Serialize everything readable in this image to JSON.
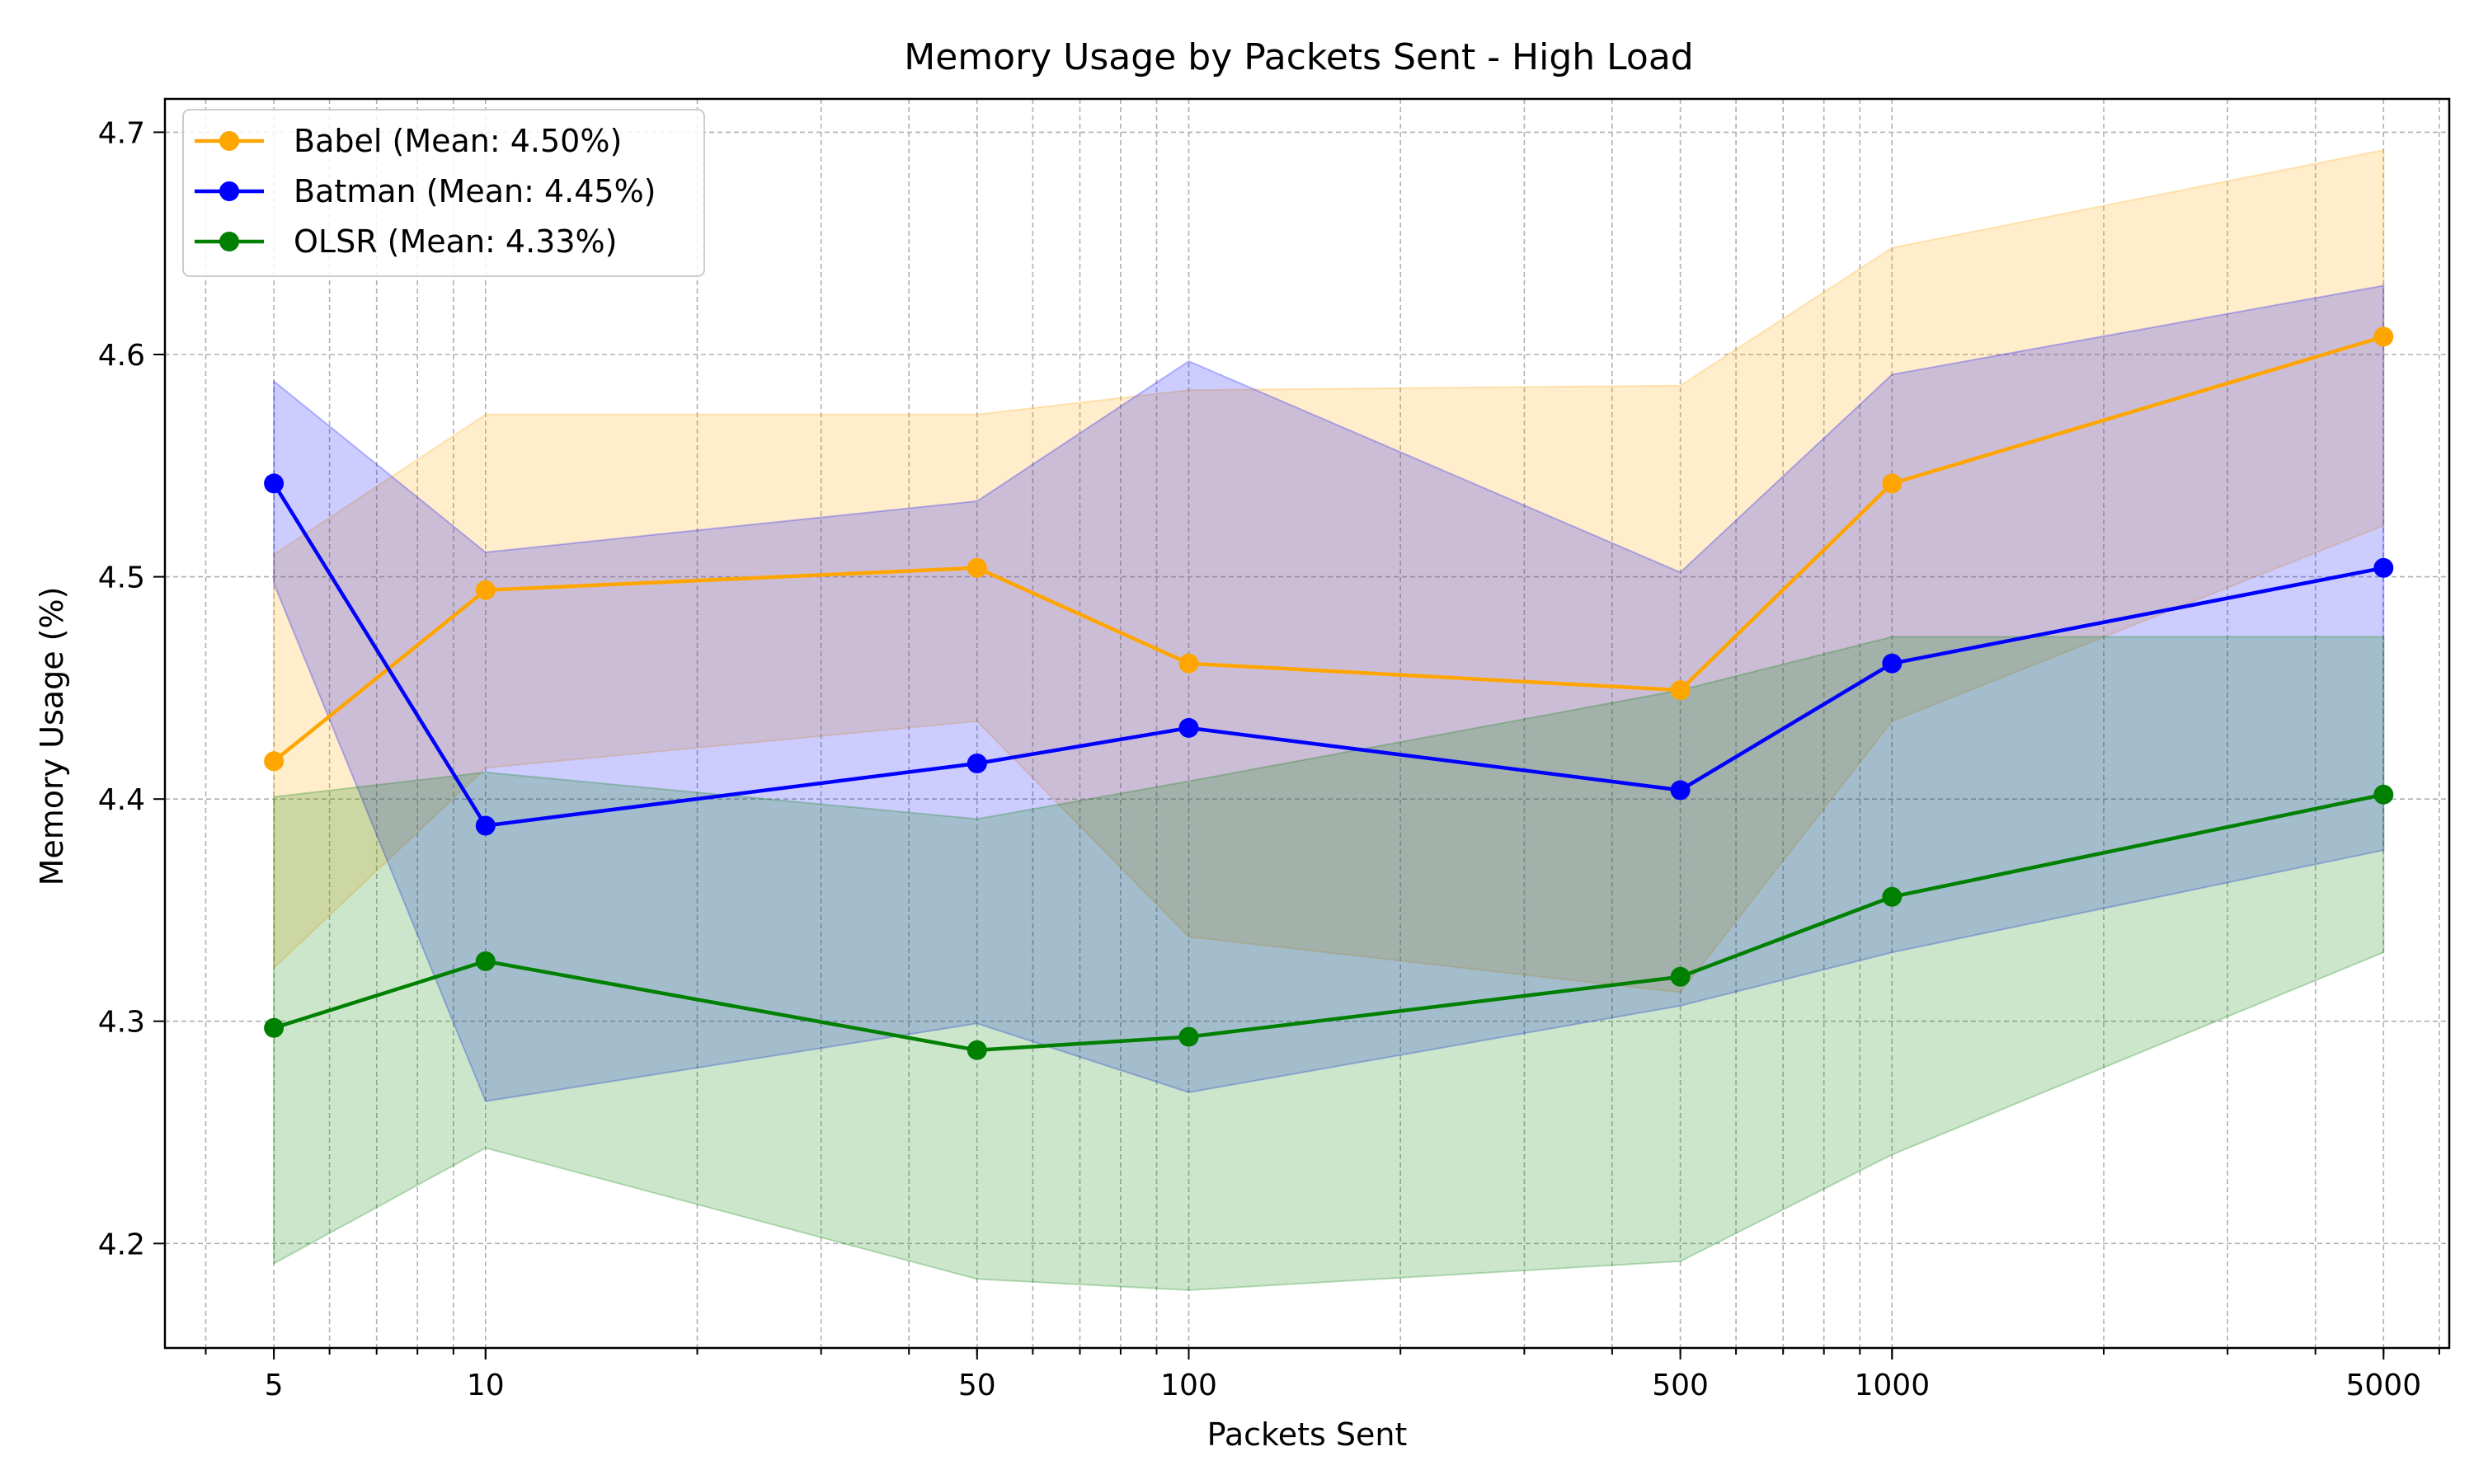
{
  "chart_data": {
    "type": "line",
    "title": "Memory Usage by Packets Sent - High Load",
    "xlabel": "Packets Sent",
    "ylabel": "Memory Usage (%)",
    "x_scale": "log",
    "xlim": [
      3.5,
      6200
    ],
    "ylim": [
      4.153,
      4.715
    ],
    "x": [
      5,
      10,
      50,
      100,
      500,
      1000,
      5000
    ],
    "x_tick_labels": [
      "5",
      "10",
      "50",
      "100",
      "500",
      "1000",
      "5000"
    ],
    "y_ticks": [
      4.2,
      4.3,
      4.4,
      4.5,
      4.6,
      4.7
    ],
    "y_tick_labels": [
      "4.2",
      "4.3",
      "4.4",
      "4.5",
      "4.6",
      "4.7"
    ],
    "grid": true,
    "legend_position": "top-left",
    "series": [
      {
        "name": "Babel (Mean: 4.50%)",
        "color": "#ffa500",
        "values": [
          4.417,
          4.494,
          4.504,
          4.461,
          4.449,
          4.542,
          4.608
        ],
        "band_upper": [
          4.51,
          4.573,
          4.573,
          4.584,
          4.586,
          4.648,
          4.692
        ],
        "band_lower": [
          4.324,
          4.414,
          4.435,
          4.338,
          4.313,
          4.435,
          4.523
        ]
      },
      {
        "name": "Batman (Mean: 4.45%)",
        "color": "#0000ff",
        "values": [
          4.542,
          4.388,
          4.416,
          4.432,
          4.404,
          4.461,
          4.504
        ],
        "band_upper": [
          4.588,
          4.511,
          4.534,
          4.597,
          4.502,
          4.591,
          4.631
        ],
        "band_lower": [
          4.497,
          4.264,
          4.299,
          4.268,
          4.307,
          4.331,
          4.377
        ]
      },
      {
        "name": "OLSR (Mean: 4.33%)",
        "color": "#008000",
        "values": [
          4.297,
          4.327,
          4.287,
          4.293,
          4.32,
          4.356,
          4.402
        ],
        "band_upper": [
          4.401,
          4.412,
          4.391,
          4.408,
          4.449,
          4.473,
          4.473
        ],
        "band_lower": [
          4.191,
          4.243,
          4.184,
          4.179,
          4.192,
          4.24,
          4.331
        ]
      }
    ]
  }
}
